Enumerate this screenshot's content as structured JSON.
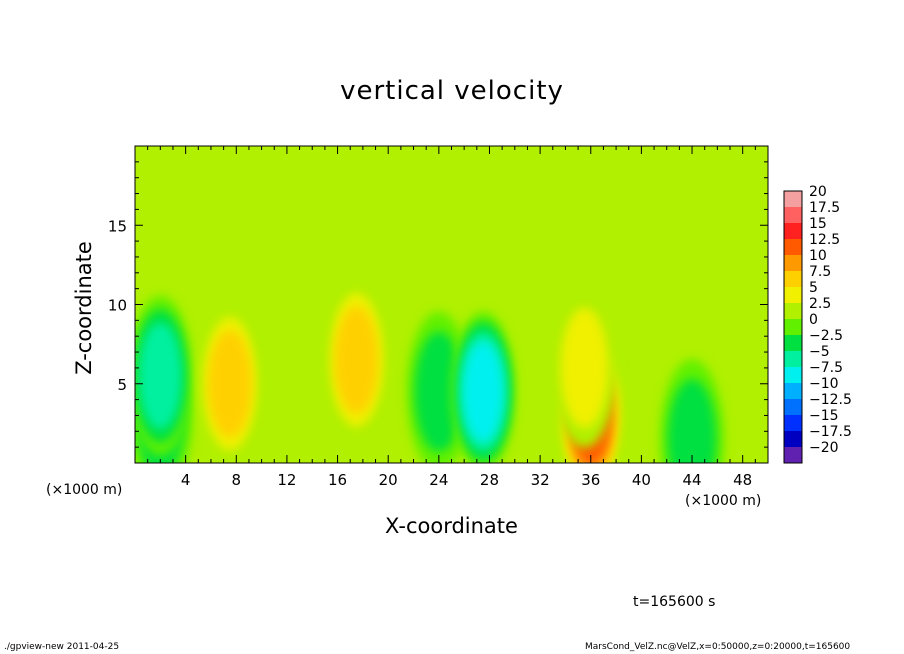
{
  "chart_data": {
    "type": "heatmap",
    "title": "vertical velocity",
    "xlabel": "X-coordinate",
    "ylabel": "Z-coordinate",
    "x_unit_label": "(×1000 m)",
    "xlim": [
      0,
      50
    ],
    "ylim": [
      0,
      20
    ],
    "xticks": [
      4,
      8,
      12,
      16,
      20,
      24,
      28,
      32,
      36,
      40,
      44,
      48
    ],
    "yticks": [
      5,
      10,
      15
    ],
    "colorbar": {
      "levels": [
        20,
        17.5,
        15,
        12.5,
        10,
        7.5,
        5,
        2.5,
        0,
        -2.5,
        -5,
        -7.5,
        -10,
        -12.5,
        -15,
        -17.5,
        -20
      ],
      "level_labels": [
        "20",
        "17.5",
        "15",
        "12.5",
        "10",
        "7.5",
        "5",
        "2.5",
        "0",
        "−2.5",
        "−5",
        "−7.5",
        "−10",
        "−12.5",
        "−15",
        "−17.5",
        "−20"
      ],
      "colors": [
        "#f4a0a0",
        "#ff6060",
        "#ff2020",
        "#ff5a00",
        "#ff9900",
        "#ffd000",
        "#f0f000",
        "#b0f000",
        "#60f000",
        "#00e040",
        "#00f0a0",
        "#00f0f0",
        "#00b0ff",
        "#0070ff",
        "#0030ff",
        "#0000c0",
        "#6020b0"
      ]
    },
    "features": [
      {
        "x": 2.0,
        "z": 3.0,
        "value": -5
      },
      {
        "x": 2.0,
        "z": 5.5,
        "value": -6
      },
      {
        "x": 7.5,
        "z": 5.0,
        "value": 6
      },
      {
        "x": 17.5,
        "z": 6.5,
        "value": 6
      },
      {
        "x": 24.0,
        "z": 4.5,
        "value": -4
      },
      {
        "x": 27.5,
        "z": 4.5,
        "value": -8
      },
      {
        "x": 36.0,
        "z": 3.0,
        "value": 11
      },
      {
        "x": 35.5,
        "z": 6.0,
        "value": 4
      },
      {
        "x": 44.5,
        "z": 6.0,
        "value": 2
      },
      {
        "x": 44.0,
        "z": 1.5,
        "value": -3
      }
    ]
  },
  "time_label": "t=165600 s",
  "footer": {
    "left": "./gpview-new  2011-04-25",
    "right": "MarsCond_VelZ.nc@VelZ,x=0:50000,z=0:20000,t=165600"
  }
}
